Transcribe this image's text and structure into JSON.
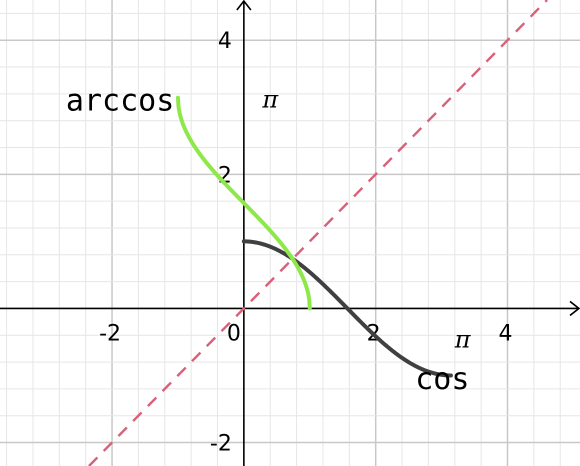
{
  "chart_data": {
    "type": "line",
    "title": "",
    "xlabel": "",
    "ylabel": "",
    "xlim": [
      -3.7,
      5.1
    ],
    "ylim": [
      -2.35,
      4.6
    ],
    "grid": true,
    "minor_grid_step": 0.4,
    "major_grid_step": 2,
    "x_ticks": [
      -2,
      0,
      2,
      4
    ],
    "x_tick_labels": [
      "-2",
      "0",
      "2",
      "4"
    ],
    "y_ticks": [
      -2,
      2,
      4
    ],
    "y_tick_labels": [
      "-2",
      "2",
      "4"
    ],
    "series": [
      {
        "name": "cos",
        "color": "#404040",
        "style": "solid",
        "function": "cos",
        "domain": [
          0,
          3.14159
        ]
      },
      {
        "name": "arccos",
        "color": "#8ee84a",
        "style": "solid",
        "function": "arccos",
        "domain": [
          -1,
          1
        ]
      },
      {
        "name": "",
        "color": "#d9607a",
        "style": "dashed",
        "function": "identity",
        "domain": [
          -2.35,
          4.6
        ]
      }
    ],
    "annotations": [
      {
        "text": "arccos",
        "x": -2.7,
        "y": 2.95
      },
      {
        "text": "π",
        "x": 0.28,
        "y": 3.0
      },
      {
        "text": "cos",
        "x": 2.6,
        "y": -1.2
      },
      {
        "text": "π",
        "x": 3.2,
        "y": -0.58
      }
    ]
  }
}
